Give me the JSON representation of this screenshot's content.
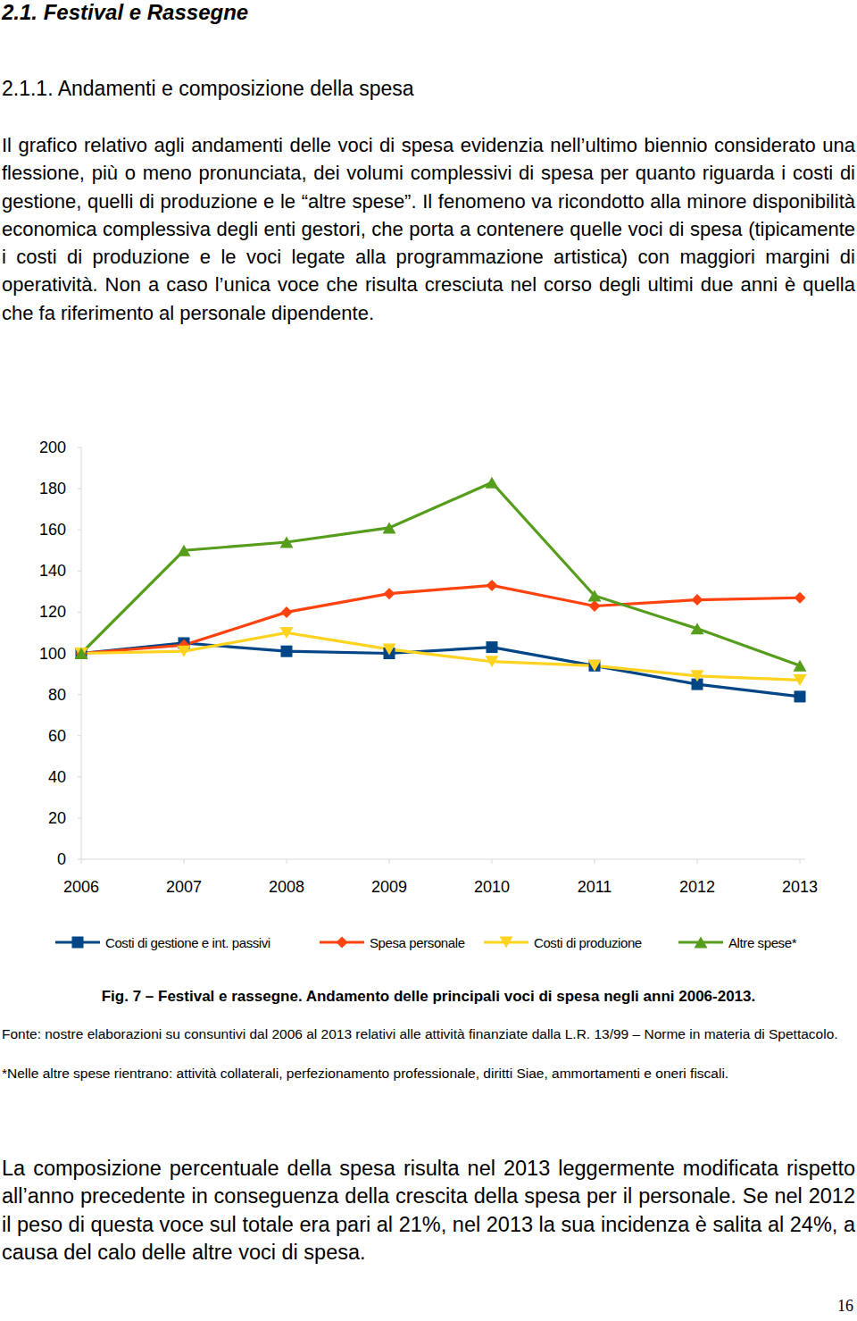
{
  "header": {
    "section": "2.1. Festival e Rassegne",
    "subsection": "2.1.1. Andamenti e composizione della spesa"
  },
  "paragraphs": [
    "Il grafico relativo agli andamenti delle voci di spesa evidenzia nell’ultimo biennio considerato una flessione, più o meno pronunciata, dei volumi complessivi di spesa per quanto riguarda i costi di gestione, quelli di produzione e le “altre spese”. Il fenomeno va ricondotto alla minore disponibilità economica complessiva degli enti gestori, che porta a contenere quelle voci di spesa (tipicamente i costi di produzione e le voci legate alla programmazione artistica) con maggiori margini di operatività. Non a caso l’unica voce che risulta cresciuta nel corso degli ultimi due anni è quella che fa riferimento al personale dipendente.",
    "La composizione percentuale della spesa risulta nel 2013 leggermente modificata rispetto all’anno precedente in conseguenza della crescita della spesa per il personale. Se nel 2012 il peso di questa voce sul totale era pari al 21%, nel 2013 la sua incidenza è salita al 24%, a causa del calo delle altre voci di spesa."
  ],
  "chart_data": {
    "type": "line",
    "categories": [
      "2006",
      "2007",
      "2008",
      "2009",
      "2010",
      "2011",
      "2012",
      "2013"
    ],
    "series": [
      {
        "name": "Costi di gestione e int. passivi",
        "color": "#004586",
        "marker": "square",
        "values": [
          100,
          105,
          101,
          100,
          103,
          94,
          85,
          79
        ]
      },
      {
        "name": "Spesa personale",
        "color": "#ff420e",
        "marker": "diamond",
        "values": [
          100,
          104,
          120,
          129,
          133,
          123,
          126,
          127
        ]
      },
      {
        "name": "Costi di produzione",
        "color": "#ffd320",
        "marker": "triangle-down",
        "values": [
          100,
          101,
          110,
          102,
          96,
          94,
          89,
          87
        ]
      },
      {
        "name": "Altre spese*",
        "color": "#579d1c",
        "marker": "triangle-up",
        "values": [
          100,
          150,
          154,
          161,
          183,
          128,
          112,
          94
        ]
      }
    ],
    "ylim": [
      0,
      200
    ],
    "yticks": [
      0,
      20,
      40,
      60,
      80,
      100,
      120,
      140,
      160,
      180,
      200
    ],
    "grid": false,
    "legend": "bottom"
  },
  "caption": {
    "title": "Fig. 7 – Festival e rassegne. Andamento delle principali voci di spesa negli anni 2006-2013.",
    "source": "Fonte: nostre elaborazioni su consuntivi dal 2006 al 2013 relativi alle attività finanziate dalla L.R. 13/99 – Norme in materia di Spettacolo.",
    "note": "*Nelle altre spese rientrano: attività collaterali, perfezionamento professionale, diritti Siae, ammortamenti e oneri fiscali."
  },
  "page_number": "16"
}
